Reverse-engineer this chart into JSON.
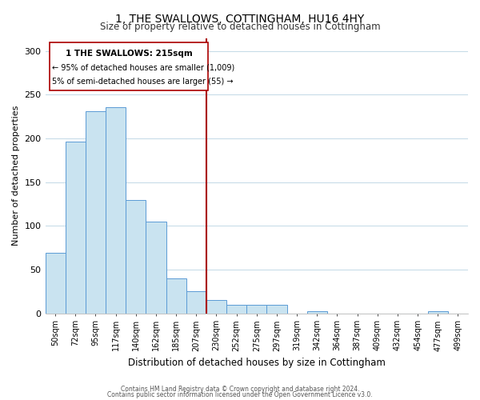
{
  "title": "1, THE SWALLOWS, COTTINGHAM, HU16 4HY",
  "subtitle": "Size of property relative to detached houses in Cottingham",
  "xlabel": "Distribution of detached houses by size in Cottingham",
  "ylabel": "Number of detached properties",
  "bar_labels": [
    "50sqm",
    "72sqm",
    "95sqm",
    "117sqm",
    "140sqm",
    "162sqm",
    "185sqm",
    "207sqm",
    "230sqm",
    "252sqm",
    "275sqm",
    "297sqm",
    "319sqm",
    "342sqm",
    "364sqm",
    "387sqm",
    "409sqm",
    "432sqm",
    "454sqm",
    "477sqm",
    "499sqm"
  ],
  "bar_values": [
    69,
    196,
    231,
    236,
    130,
    105,
    40,
    25,
    15,
    10,
    10,
    10,
    0,
    2,
    0,
    0,
    0,
    0,
    0,
    2,
    0
  ],
  "bar_color": "#c9e3f0",
  "bar_edge_color": "#5b9bd5",
  "grid_color": "#c8dce8",
  "vline_color": "#aa0000",
  "annotation_title": "1 THE SWALLOWS: 215sqm",
  "annotation_line1": "← 95% of detached houses are smaller (1,009)",
  "annotation_line2": "5% of semi-detached houses are larger (55) →",
  "annotation_box_color": "#ffffff",
  "annotation_box_edge": "#aa0000",
  "ylim": [
    0,
    315
  ],
  "yticks": [
    0,
    50,
    100,
    150,
    200,
    250,
    300
  ],
  "footnote1": "Contains HM Land Registry data © Crown copyright and database right 2024.",
  "footnote2": "Contains public sector information licensed under the Open Government Licence v3.0."
}
